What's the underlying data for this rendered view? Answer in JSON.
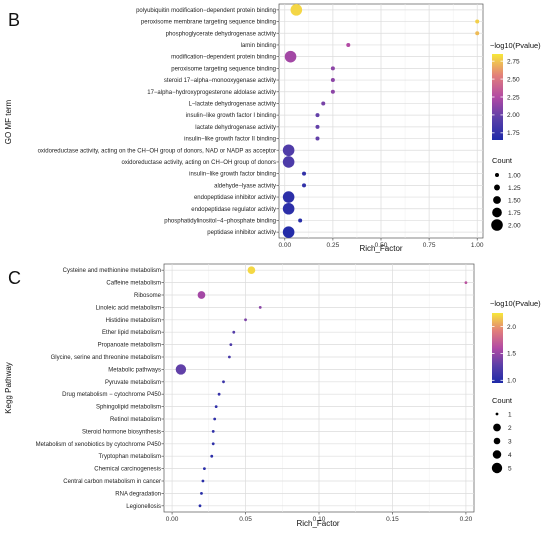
{
  "chart_data": [
    {
      "panel": "B",
      "type": "scatter",
      "xlabel": "Rich_Factor",
      "ylabel": "GO MF term",
      "xlim": [
        -0.03,
        1.03
      ],
      "xticks": [
        "0.00",
        "0.25",
        "0.50",
        "0.75",
        "1.00"
      ],
      "xtick_values": [
        0,
        0.25,
        0.5,
        0.75,
        1.0
      ],
      "grid": true,
      "legend_position": "right",
      "color_legend": {
        "title": "−log10(Pvalue)",
        "min": 1.65,
        "max": 2.85,
        "ticks": [
          "2.75",
          "2.50",
          "2.25",
          "2.00",
          "1.75"
        ],
        "tick_values": [
          2.75,
          2.5,
          2.25,
          2.0,
          1.75
        ]
      },
      "size_legend": {
        "title": "Count",
        "labels": [
          "1.00",
          "1.25",
          "1.50",
          "1.75",
          "2.00"
        ],
        "values": [
          1.0,
          1.25,
          1.5,
          1.75,
          2.0
        ]
      },
      "points": [
        {
          "term": "polyubiquitin modification−dependent protein binding",
          "x": 0.06,
          "neglogp": 2.8,
          "count": 2
        },
        {
          "term": "peroxisome membrane targeting sequence binding",
          "x": 1.0,
          "neglogp": 2.78,
          "count": 1
        },
        {
          "term": "phosphoglycerate dehydrogenase activity",
          "x": 1.0,
          "neglogp": 2.72,
          "count": 1
        },
        {
          "term": "lamin binding",
          "x": 0.33,
          "neglogp": 2.25,
          "count": 1
        },
        {
          "term": "modification−dependent protein binding",
          "x": 0.03,
          "neglogp": 2.2,
          "count": 2
        },
        {
          "term": "peroxisome targeting sequence binding",
          "x": 0.25,
          "neglogp": 2.12,
          "count": 1
        },
        {
          "term": "steroid 17−alpha−monooxygenase activity",
          "x": 0.25,
          "neglogp": 2.12,
          "count": 1
        },
        {
          "term": "17−alpha−hydroxyprogesterone aldolase activity",
          "x": 0.25,
          "neglogp": 2.12,
          "count": 1
        },
        {
          "term": "L−lactate dehydrogenase activity",
          "x": 0.2,
          "neglogp": 2.05,
          "count": 1
        },
        {
          "term": "insulin−like growth factor I binding",
          "x": 0.17,
          "neglogp": 1.98,
          "count": 1
        },
        {
          "term": "lactate dehydrogenase activity",
          "x": 0.17,
          "neglogp": 1.98,
          "count": 1
        },
        {
          "term": "insulin−like growth factor II binding",
          "x": 0.17,
          "neglogp": 1.98,
          "count": 1
        },
        {
          "term": "oxidoreductase activity, acting on the CH−OH group of donors, NAD or NADP as acceptor",
          "x": 0.02,
          "neglogp": 1.9,
          "count": 2
        },
        {
          "term": "oxidoreductase activity, acting on CH−OH group of donors",
          "x": 0.02,
          "neglogp": 1.88,
          "count": 2
        },
        {
          "term": "insulin−like growth factor binding",
          "x": 0.1,
          "neglogp": 1.75,
          "count": 1
        },
        {
          "term": "aldehyde−lyase activity",
          "x": 0.1,
          "neglogp": 1.75,
          "count": 1
        },
        {
          "term": "endopeptidase inhibitor activity",
          "x": 0.02,
          "neglogp": 1.72,
          "count": 2
        },
        {
          "term": "endopeptidase regulator activity",
          "x": 0.02,
          "neglogp": 1.72,
          "count": 2
        },
        {
          "term": "phosphatidylinositol−4−phosphate binding",
          "x": 0.08,
          "neglogp": 1.7,
          "count": 1
        },
        {
          "term": "peptidase inhibitor activity",
          "x": 0.02,
          "neglogp": 1.68,
          "count": 2
        }
      ]
    },
    {
      "panel": "C",
      "type": "scatter",
      "xlabel": "Rich_Factor",
      "ylabel": "Kegg Pathway",
      "xlim": [
        -0.0055,
        0.2055
      ],
      "xticks": [
        "0.00",
        "0.05",
        "0.10",
        "0.15",
        "0.20"
      ],
      "xtick_values": [
        0,
        0.05,
        0.1,
        0.15,
        0.2
      ],
      "grid": true,
      "legend_position": "right",
      "color_legend": {
        "title": "−log10(Pvalue)",
        "min": 0.95,
        "max": 2.25,
        "ticks": [
          "2.0",
          "1.5",
          "1.0"
        ],
        "tick_values": [
          2.0,
          1.5,
          1.0
        ]
      },
      "size_legend": {
        "title": "Count",
        "labels": [
          "1",
          "2",
          "3",
          "4",
          "5"
        ],
        "values": [
          1,
          2,
          3,
          4,
          5
        ]
      },
      "points": [
        {
          "term": "Cysteine and methionine metabolism",
          "x": 0.054,
          "neglogp": 2.2,
          "count": 2
        },
        {
          "term": "Caffeine metabolism",
          "x": 0.2,
          "neglogp": 1.65,
          "count": 1
        },
        {
          "term": "Ribosome",
          "x": 0.02,
          "neglogp": 1.55,
          "count": 2
        },
        {
          "term": "Linoleic acid metabolism",
          "x": 0.06,
          "neglogp": 1.45,
          "count": 1
        },
        {
          "term": "Histidine metabolism",
          "x": 0.05,
          "neglogp": 1.4,
          "count": 1
        },
        {
          "term": "Ether lipid metabolism",
          "x": 0.042,
          "neglogp": 1.25,
          "count": 1
        },
        {
          "term": "Propanoate metabolism",
          "x": 0.04,
          "neglogp": 1.2,
          "count": 1
        },
        {
          "term": "Glycine, serine and threonine metabolism",
          "x": 0.039,
          "neglogp": 1.18,
          "count": 1
        },
        {
          "term": "Metabolic pathways",
          "x": 0.006,
          "neglogp": 1.3,
          "count": 5
        },
        {
          "term": "Pyruvate metabolism",
          "x": 0.035,
          "neglogp": 1.1,
          "count": 1
        },
        {
          "term": "Drug metabolism − cytochrome P450",
          "x": 0.032,
          "neglogp": 1.08,
          "count": 1
        },
        {
          "term": "Sphingolipid metabolism",
          "x": 0.03,
          "neglogp": 1.05,
          "count": 1
        },
        {
          "term": "Retinol metabolism",
          "x": 0.029,
          "neglogp": 1.05,
          "count": 1
        },
        {
          "term": "Steroid hormone biosynthesis",
          "x": 0.028,
          "neglogp": 1.04,
          "count": 1
        },
        {
          "term": "Metabolism of xenobiotics by cytochrome P450",
          "x": 0.028,
          "neglogp": 1.04,
          "count": 1
        },
        {
          "term": "Tryptophan metabolism",
          "x": 0.027,
          "neglogp": 1.03,
          "count": 1
        },
        {
          "term": "Chemical carcinogenesis",
          "x": 0.022,
          "neglogp": 1.02,
          "count": 1
        },
        {
          "term": "Central carbon metabolism in cancer",
          "x": 0.021,
          "neglogp": 1.01,
          "count": 1
        },
        {
          "term": "RNA degradation",
          "x": 0.02,
          "neglogp": 1.0,
          "count": 1
        },
        {
          "term": "Legionellosis",
          "x": 0.019,
          "neglogp": 1.0,
          "count": 1
        }
      ]
    }
  ]
}
